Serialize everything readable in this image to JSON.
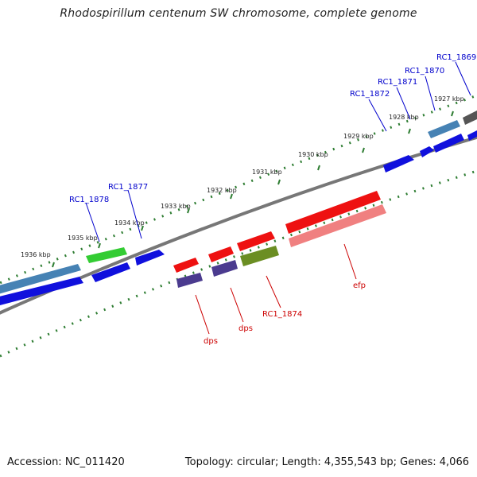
{
  "title": "Rhodospirillum centenum SW chromosome, complete genome",
  "footer": {
    "accession": "Accession: NC_011420",
    "summary": "Topology: circular; Length: 4,355,543 bp; Genes: 4,066"
  },
  "colors": {
    "backbone": "#7a7a7a",
    "tick": "#2e7d32",
    "forward_label": "#0000cc",
    "reverse_label": "#cc0000"
  },
  "kbp_ticks": [
    "1936 kbp",
    "1935 kbp",
    "1934 kbp",
    "1933 kbp",
    "1932 kbp",
    "1931 kbp",
    "1930 kbp",
    "1929 kbp",
    "1928 kbp",
    "1927 kbp"
  ],
  "forward_gene_labels": [
    "RC1_1878",
    "RC1_1877",
    "RC1_1872",
    "RC1_1871",
    "RC1_1870",
    "RC1_1869"
  ],
  "reverse_gene_labels": [
    "dps",
    "dps",
    "RC1_1874",
    "efp"
  ]
}
